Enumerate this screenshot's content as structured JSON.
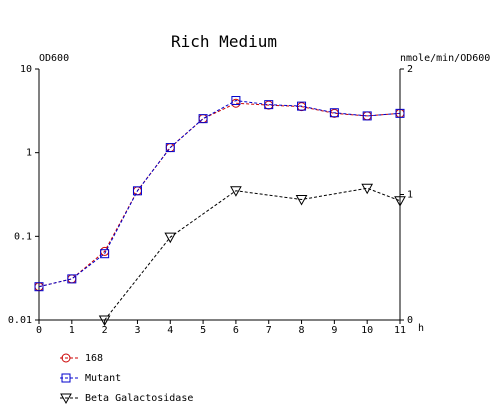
{
  "chart_data": {
    "type": "line",
    "title": "Rich Medium",
    "xlabel": "h",
    "ylabel_left": "OD600",
    "ylabel_right": "nmole/min/OD600",
    "x_ticks": [
      "0",
      "1",
      "2",
      "3",
      "4",
      "5",
      "6",
      "7",
      "8",
      "9",
      "10",
      "11"
    ],
    "xlim": [
      0,
      11
    ],
    "y_left_scale": "log",
    "y_left_lim": [
      0.01,
      10
    ],
    "y_left_ticks": [
      "0.01",
      "0.1",
      "1",
      "10"
    ],
    "y_right_lim": [
      0,
      2
    ],
    "y_right_ticks": [
      "0",
      "1",
      "2"
    ],
    "grid": false,
    "legend_position": "bottom-left",
    "series": [
      {
        "name": "168",
        "axis": "left",
        "marker": "circle",
        "color": "#cc0000",
        "line_style": "dashed",
        "x": [
          0,
          1,
          2,
          3,
          4,
          5,
          6,
          7,
          8,
          9,
          10,
          11
        ],
        "y": [
          0.025,
          0.031,
          0.066,
          0.35,
          1.15,
          2.55,
          3.9,
          3.7,
          3.55,
          2.95,
          2.75,
          2.95
        ]
      },
      {
        "name": "Mutant",
        "axis": "left",
        "marker": "square",
        "color": "#0000cc",
        "line_style": "dashed",
        "x": [
          0,
          1,
          2,
          3,
          4,
          5,
          6,
          7,
          8,
          9,
          10,
          11
        ],
        "y": [
          0.025,
          0.031,
          0.062,
          0.35,
          1.15,
          2.55,
          4.2,
          3.75,
          3.6,
          3.0,
          2.75,
          2.95
        ]
      },
      {
        "name": "Beta Galactosidase",
        "axis": "right",
        "marker": "triangle-down",
        "color": "#000000",
        "line_style": "dashed",
        "x": [
          2,
          4,
          6,
          8,
          10,
          11
        ],
        "y": [
          0.0,
          0.66,
          1.03,
          0.96,
          1.05,
          0.95
        ]
      }
    ]
  }
}
